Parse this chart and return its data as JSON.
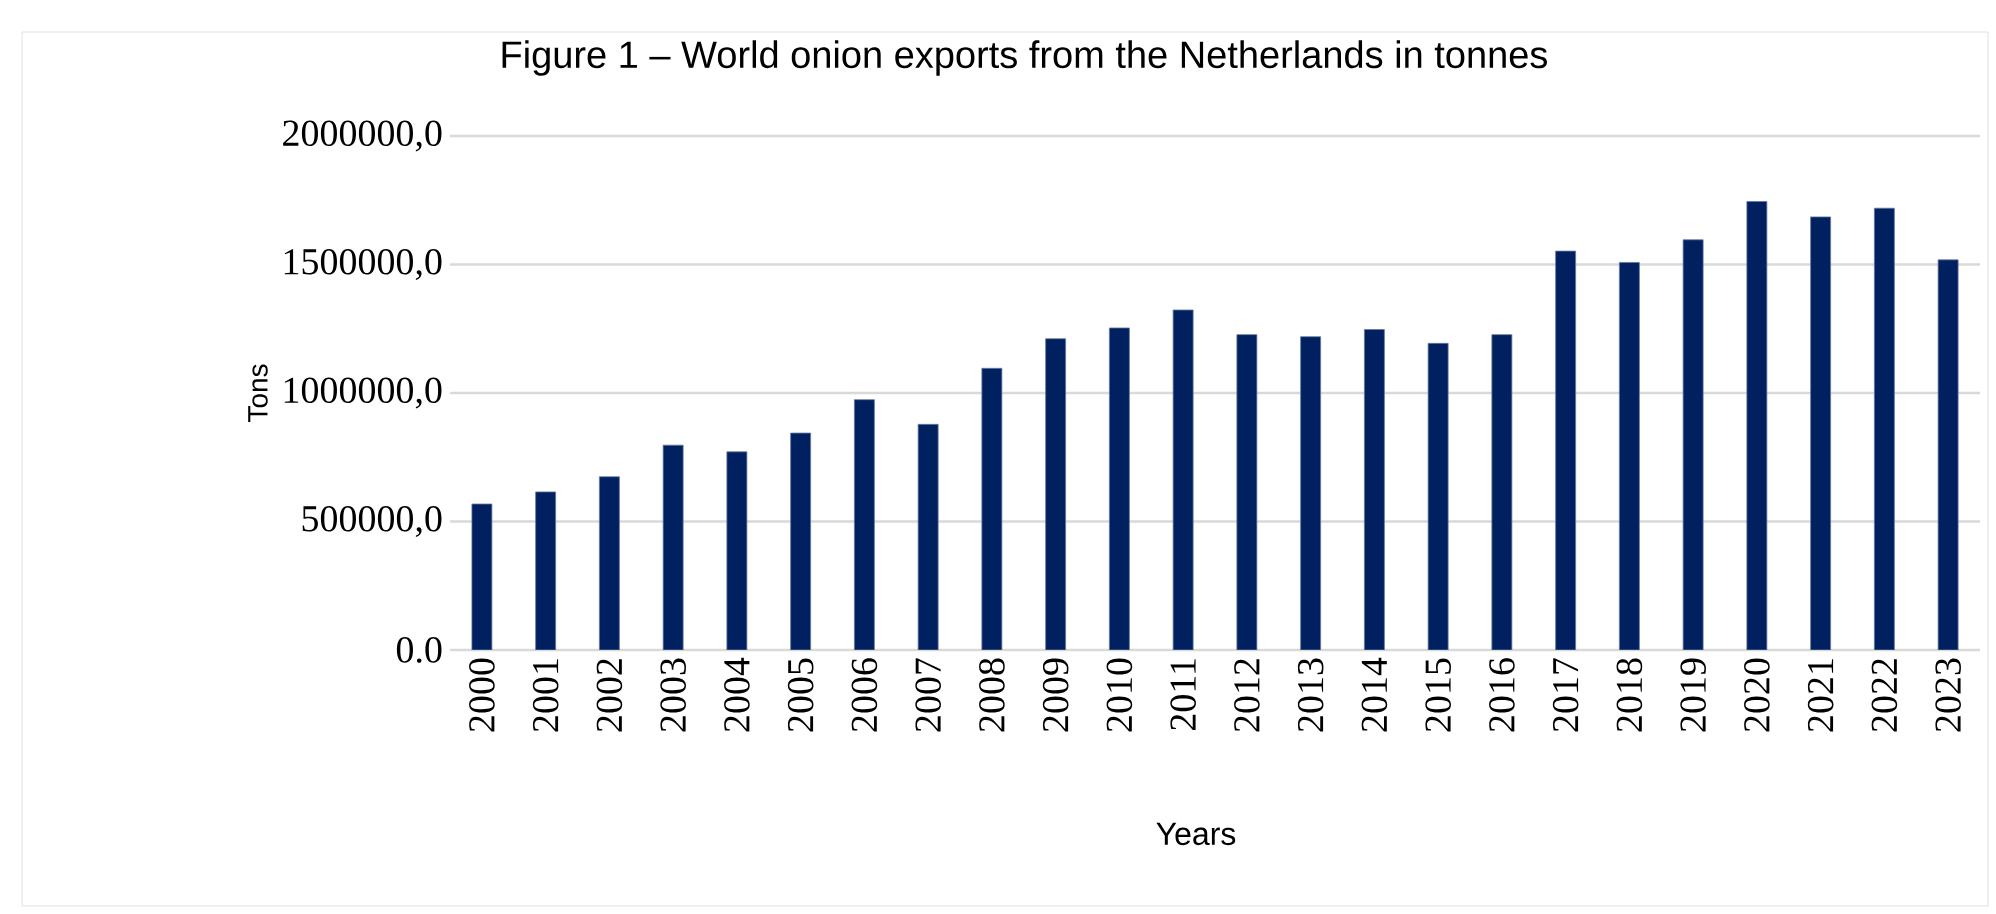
{
  "chart_data": {
    "type": "bar",
    "title": "Figure 1 – World onion exports from the Netherlands in tonnes",
    "xlabel": "Years",
    "ylabel": "Tons",
    "categories": [
      "2000",
      "2001",
      "2002",
      "2003",
      "2004",
      "2005",
      "2006",
      "2007",
      "2008",
      "2009",
      "2010",
      "2011",
      "2012",
      "2013",
      "2014",
      "2015",
      "2016",
      "2017",
      "2018",
      "2019",
      "2020",
      "2021",
      "2022",
      "2023"
    ],
    "values": [
      568000,
      615000,
      674000,
      797000,
      771000,
      844000,
      974000,
      878000,
      1096000,
      1211000,
      1253000,
      1323000,
      1227000,
      1219000,
      1247000,
      1193000,
      1227000,
      1552000,
      1508000,
      1596000,
      1745000,
      1685000,
      1719000,
      1518000
    ],
    "color": "#002060",
    "ylim": [
      0,
      2000000
    ],
    "yticks": [
      {
        "value": 0,
        "label": "0.0"
      },
      {
        "value": 500000,
        "label": "500000,0"
      },
      {
        "value": 1000000,
        "label": "1000000,0"
      },
      {
        "value": 1500000,
        "label": "1500000,0"
      },
      {
        "value": 2000000,
        "label": "2000000,0"
      }
    ],
    "grid": "y"
  }
}
